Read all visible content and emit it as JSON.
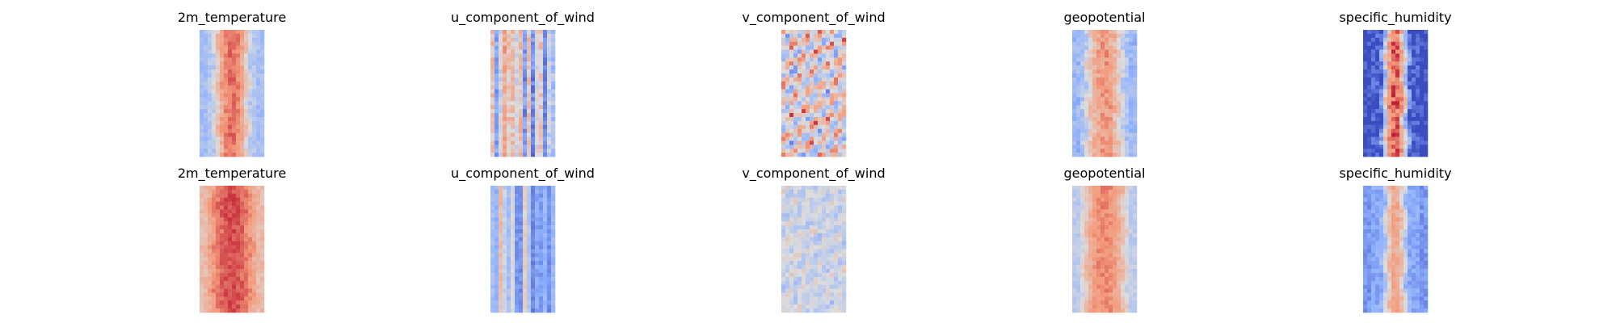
{
  "chart_data": {
    "type": "heatmap",
    "colormap": "coolwarm",
    "colormap_stops": [
      "#3b4cc0",
      "#8db0fe",
      "#dddddd",
      "#f49a7b",
      "#b40426"
    ],
    "axes_visible": false,
    "layout": {
      "rows": 2,
      "cols": 5
    },
    "panels": [
      {
        "title": "2m_temperature",
        "pattern": "band",
        "core": 0.82,
        "edge": 0.38,
        "width": 0.3,
        "noise": 0.06
      },
      {
        "title": "u_component_of_wind",
        "pattern": "streaks",
        "base": 0.4,
        "amp": 0.3,
        "noise": 0.1
      },
      {
        "title": "v_component_of_wind",
        "pattern": "mottled",
        "base": 0.52,
        "amp": 0.3,
        "noise": 0.12
      },
      {
        "title": "geopotential",
        "pattern": "band",
        "core": 0.74,
        "edge": 0.35,
        "width": 0.33,
        "noise": 0.08
      },
      {
        "title": "specific_humidity",
        "pattern": "band",
        "core": 0.85,
        "edge": 0.03,
        "width": 0.22,
        "noise": 0.12
      },
      {
        "title": "2m_temperature",
        "pattern": "band",
        "core": 0.88,
        "edge": 0.68,
        "width": 0.35,
        "noise": 0.05
      },
      {
        "title": "u_component_of_wind",
        "pattern": "streaks",
        "base": 0.34,
        "amp": 0.24,
        "noise": 0.05
      },
      {
        "title": "v_component_of_wind",
        "pattern": "mottled",
        "base": 0.45,
        "amp": 0.1,
        "noise": 0.07
      },
      {
        "title": "geopotential",
        "pattern": "band",
        "core": 0.78,
        "edge": 0.45,
        "width": 0.38,
        "noise": 0.05
      },
      {
        "title": "specific_humidity",
        "pattern": "band",
        "core": 0.7,
        "edge": 0.24,
        "width": 0.2,
        "noise": 0.06
      }
    ]
  }
}
